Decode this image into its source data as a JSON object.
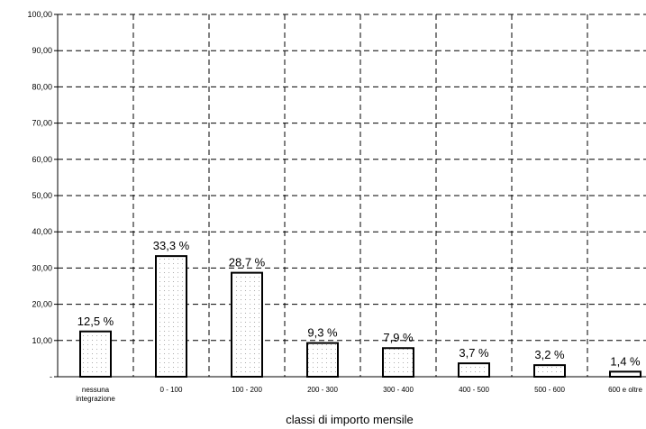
{
  "chart_data": {
    "type": "bar",
    "title": "",
    "xlabel": "classi di importo mensile",
    "ylabel": "",
    "ylim": [
      0,
      100
    ],
    "y_ticks": [
      "-",
      "10,00",
      "20,00",
      "30,00",
      "40,00",
      "50,00",
      "60,00",
      "70,00",
      "80,00",
      "90,00",
      "100,00"
    ],
    "categories": [
      [
        "nessuna",
        "integrazione"
      ],
      [
        "0 - 100"
      ],
      [
        "100 - 200"
      ],
      [
        "200 - 300"
      ],
      [
        "300 - 400"
      ],
      [
        "400 - 500"
      ],
      [
        "500 - 600"
      ],
      [
        "600 e oltre"
      ]
    ],
    "values": [
      12.5,
      33.3,
      28.7,
      9.3,
      7.9,
      3.7,
      3.2,
      1.4
    ],
    "data_labels": [
      "12,5 %",
      "33,3 %",
      "28,7 %",
      "9,3 %",
      "7,9 %",
      "3,7 %",
      "3,2 %",
      "1,4 %"
    ],
    "grid": true,
    "grid_style": "dashed",
    "bar_fill": "dotted",
    "legend": "none",
    "colors": {
      "bar_stroke": "#000000",
      "bar_fill": "#ffffff",
      "dots": "#9a9a9a",
      "grid": "#000000"
    }
  }
}
